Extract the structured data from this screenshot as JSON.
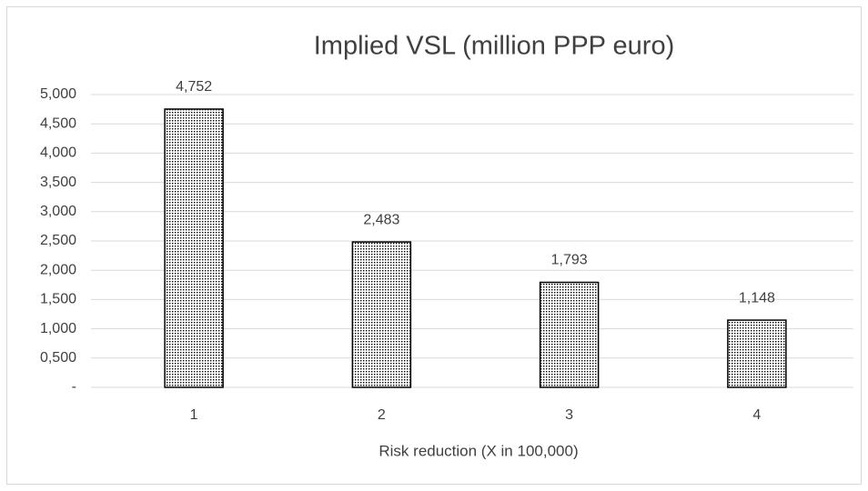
{
  "chart_data": {
    "type": "bar",
    "title": "Implied VSL (million PPP euro)",
    "x_label": "Risk reduction (X in 100,000)",
    "categories": [
      "1",
      "2",
      "3",
      "4"
    ],
    "values": [
      4.752,
      2.483,
      1.793,
      1.148
    ],
    "value_labels": [
      "4,752",
      "2,483",
      "1,793",
      "1,148"
    ],
    "color": "#000000",
    "ylim": [
      0,
      5
    ],
    "yticks": [
      {
        "value": 0,
        "label": "-"
      },
      {
        "value": 0.5,
        "label": "0,500"
      },
      {
        "value": 1,
        "label": "1,000"
      },
      {
        "value": 1.5,
        "label": "1,500"
      },
      {
        "value": 2,
        "label": "2,000"
      },
      {
        "value": 2.5,
        "label": "2,500"
      },
      {
        "value": 3,
        "label": "3,000"
      },
      {
        "value": 3.5,
        "label": "3,500"
      },
      {
        "value": 4,
        "label": "4,000"
      },
      {
        "value": 4.5,
        "label": "4,500"
      },
      {
        "value": 5,
        "label": "5,000"
      }
    ],
    "grid": true
  }
}
